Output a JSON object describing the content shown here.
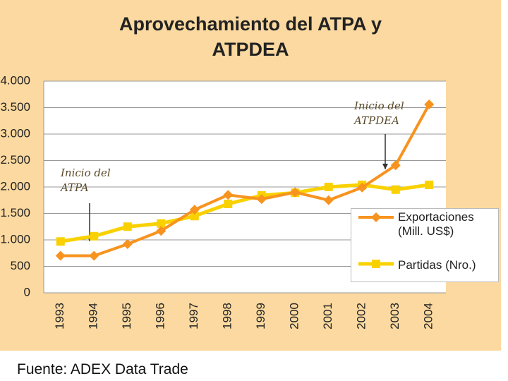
{
  "chart_data": {
    "type": "line",
    "title": [
      "Aprovechamiento del ATPA y",
      "ATPDEA"
    ],
    "categories": [
      "1993",
      "1994",
      "1995",
      "1996",
      "1997",
      "1998",
      "1999",
      "2000",
      "2001",
      "2002",
      "2003",
      "2004"
    ],
    "series": [
      {
        "name": "Exportaciones (Mill. US$)",
        "color": "#f7931e",
        "marker": "diamond",
        "values": [
          700,
          700,
          920,
          1170,
          1570,
          1850,
          1770,
          1900,
          1750,
          1990,
          2410,
          3560
        ]
      },
      {
        "name": "Partidas (Nro.)",
        "color": "#f9d100",
        "marker": "square",
        "values": [
          970,
          1070,
          1250,
          1310,
          1450,
          1680,
          1840,
          1890,
          2000,
          2040,
          1950,
          2040
        ]
      }
    ],
    "ylim": [
      0,
      4000
    ],
    "yticks": [
      0,
      500,
      {
        "value": 1000,
        "label": "1.000"
      },
      {
        "value": 1500,
        "label": "1.500"
      },
      {
        "value": 2000,
        "label": "2.000"
      },
      {
        "value": 2500,
        "label": "2.500"
      },
      {
        "value": 3000,
        "label": "3.000"
      },
      {
        "value": 3500,
        "label": "3.500"
      },
      {
        "value": 4000,
        "label": "4.000"
      }
    ],
    "grid": true,
    "annotations": [
      "Inicio del ATPA",
      "Inicio del ATPDEA"
    ],
    "source": "Fuente: ADEX Data Trade"
  }
}
